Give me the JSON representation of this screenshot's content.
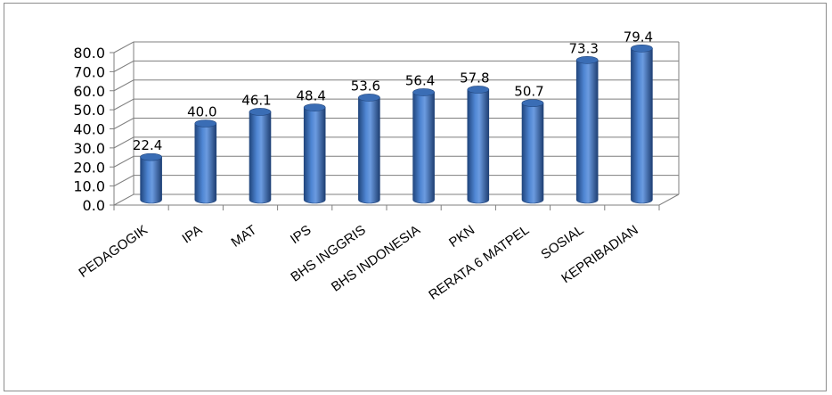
{
  "chart_data": {
    "type": "bar",
    "style": "3d-cylinder",
    "categories": [
      "PEDAGOGIK",
      "IPA",
      "MAT",
      "IPS",
      "BHS INGGRIS",
      "BHS INDONESIA",
      "PKN",
      "RERATA 6 MATPEL",
      "SOSIAL",
      "KEPRIBADIAN"
    ],
    "values": [
      22.4,
      40.0,
      46.1,
      48.4,
      53.6,
      56.4,
      57.8,
      50.7,
      73.3,
      79.4
    ],
    "value_labels": [
      "22.4",
      "40.0",
      "46.1",
      "48.4",
      "53.6",
      "56.4",
      "57.8",
      "50.7",
      "73.3",
      "79.4"
    ],
    "y_ticks": [
      "0.0",
      "10.0",
      "20.0",
      "30.0",
      "40.0",
      "50.0",
      "60.0",
      "70.0",
      "80.0"
    ],
    "ylim": [
      0,
      80
    ],
    "grid": true,
    "legend": "none",
    "colors": {
      "bar": "#3a6db5",
      "bar_dark": "#21467e",
      "bar_light": "#8fb2e6",
      "grid": "#7f7f7f"
    }
  }
}
